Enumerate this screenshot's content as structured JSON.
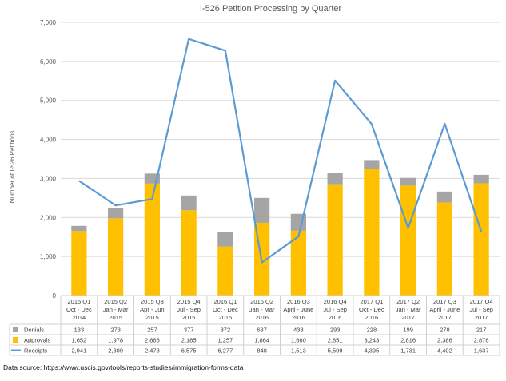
{
  "chart_data": {
    "type": "bar",
    "title": "I-526 Petition Processing by Quarter",
    "ylabel": "Number of I-526 Petitions",
    "xlabel": "",
    "ylim": [
      0,
      7000
    ],
    "yticks": [
      "0",
      "1,000",
      "2,000",
      "3,000",
      "4,000",
      "5,000",
      "6,000",
      "7,000"
    ],
    "grid": true,
    "stacked": true,
    "categories": [
      [
        "2015 Q1",
        "Oct - Dec",
        "2014"
      ],
      [
        "2015 Q2",
        "Jan - Mar",
        "2015"
      ],
      [
        "2015 Q3",
        "Apr - Jun",
        "2015"
      ],
      [
        "2015 Q4",
        "Jul - Sep",
        "2015"
      ],
      [
        "2016 Q1",
        "Oct - Dec",
        "2015"
      ],
      [
        "2016 Q2",
        "Jan - Mar",
        "2016"
      ],
      [
        "2016 Q3",
        "April - June",
        "2016"
      ],
      [
        "2016 Q4",
        "Jul - Sep",
        "2016"
      ],
      [
        "2017 Q1",
        "Oct - Dec",
        "2016"
      ],
      [
        "2017 Q2",
        "Jan - Mar",
        "2017"
      ],
      [
        "2017 Q3",
        "April - June",
        "2017"
      ],
      [
        "2017 Q4",
        "Jul - Sep",
        "2017"
      ]
    ],
    "series": [
      {
        "name": "Denials",
        "kind": "bar",
        "color": "#a5a5a5",
        "values": [
          133,
          273,
          257,
          377,
          372,
          637,
          433,
          293,
          228,
          199,
          278,
          217
        ],
        "labels": [
          "133",
          "273",
          "257",
          "377",
          "372",
          "637",
          "433",
          "293",
          "228",
          "199",
          "278",
          "217"
        ]
      },
      {
        "name": "Approvals",
        "kind": "bar",
        "color": "#ffc000",
        "values": [
          1652,
          1978,
          2868,
          2185,
          1257,
          1864,
          1660,
          2851,
          3243,
          2816,
          2386,
          2876
        ],
        "labels": [
          "1,652",
          "1,978",
          "2,868",
          "2,185",
          "1,257",
          "1,864",
          "1,660",
          "2,851",
          "3,243",
          "2,816",
          "2,386",
          "2,876"
        ]
      },
      {
        "name": "Receipts",
        "kind": "line",
        "color": "#5b9bd5",
        "values": [
          2941,
          2309,
          2473,
          6575,
          6277,
          848,
          1513,
          5509,
          4395,
          1731,
          4402,
          1637
        ],
        "labels": [
          "2,941",
          "2,309",
          "2,473",
          "6,575",
          "6,277",
          "848",
          "1,513",
          "5,509",
          "4,395",
          "1,731",
          "4,402",
          "1,637"
        ]
      }
    ],
    "legend": "data-table",
    "source": "Data source: https://www.uscis.gov/tools/reports-studies/immigration-forms-data"
  }
}
